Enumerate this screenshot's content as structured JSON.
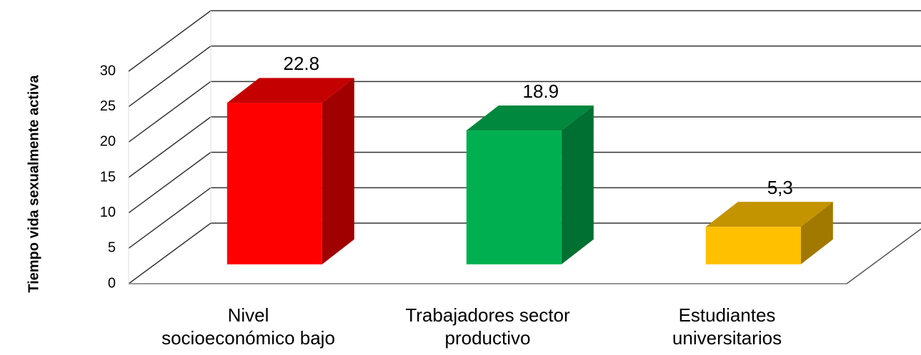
{
  "chart_data": {
    "type": "bar3d",
    "y_label": "Tiempo  vida sexualmente activa",
    "categories": [
      "Nivel\nsocioeconómico bajo",
      "Trabajadores sector\nproductivo",
      "Estudiantes\nuniversitarios"
    ],
    "values": [
      22.8,
      18.9,
      5.3
    ],
    "value_labels": [
      "22.8",
      "18.9",
      "5,3"
    ],
    "colors": [
      "#ff0000",
      "#00b050",
      "#ffc000"
    ],
    "ylim": [
      0,
      30
    ],
    "yticks": [
      0,
      5,
      10,
      15,
      20,
      25,
      30
    ],
    "grid": true
  }
}
